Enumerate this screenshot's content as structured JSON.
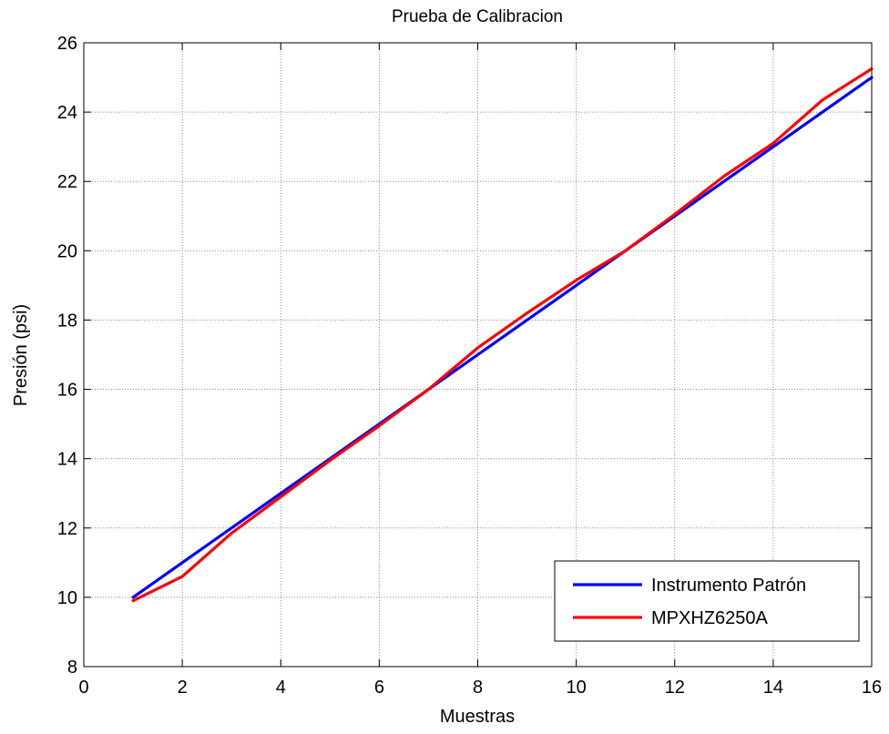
{
  "chart_data": {
    "type": "line",
    "title": "Prueba de Calibracion",
    "xlabel": "Muestras",
    "ylabel": "Presión (psi)",
    "xlim": [
      0,
      16
    ],
    "ylim": [
      8,
      26
    ],
    "xticks": [
      0,
      2,
      4,
      6,
      8,
      10,
      12,
      14,
      16
    ],
    "yticks": [
      8,
      10,
      12,
      14,
      16,
      18,
      20,
      22,
      24,
      26
    ],
    "grid": true,
    "legend_position": "bottom-right",
    "series": [
      {
        "name": "Instrumento Patrón",
        "color": "#0000ff",
        "x": [
          1,
          2,
          3,
          4,
          5,
          6,
          7,
          8,
          9,
          10,
          11,
          12,
          13,
          14,
          15,
          16
        ],
        "y": [
          10,
          11,
          12,
          13,
          14,
          15,
          16,
          17,
          18,
          19,
          20,
          21,
          22,
          23,
          24,
          25
        ]
      },
      {
        "name": "MPXHZ6250A",
        "color": "#ff0000",
        "x": [
          1,
          2,
          3,
          4,
          5,
          6,
          7,
          8,
          9,
          10,
          11,
          12,
          13,
          14,
          15,
          16
        ],
        "y": [
          9.9,
          10.6,
          11.85,
          12.9,
          13.95,
          14.95,
          16,
          17.2,
          18.2,
          19.15,
          20,
          21.05,
          22.15,
          23.1,
          24.35,
          25.25
        ]
      }
    ]
  }
}
